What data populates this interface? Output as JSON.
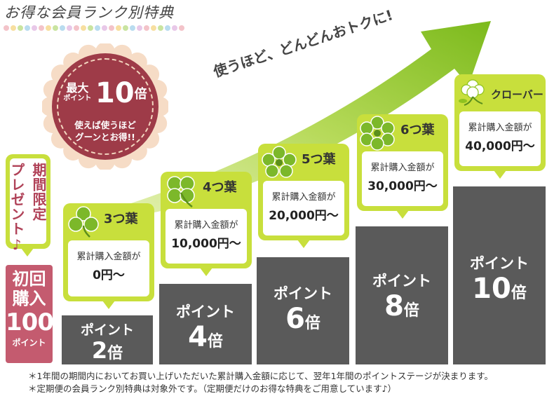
{
  "title": "お得な会員ランク別特典",
  "slogan": "使うほど、どんどんおトクに!",
  "badge": {
    "line1_a": "最大",
    "line1_b": "ポイント",
    "multiplier": "10",
    "unit": "倍",
    "line2": "使えば使うほど",
    "line3": "グーンとお得!!"
  },
  "promo": {
    "col1": "期間限定",
    "col2": "プレゼント♪"
  },
  "first_purchase": {
    "line1a": "初",
    "line1b": "回",
    "line2a": "購",
    "line2b": "入",
    "points": "100",
    "unit": "ポイント"
  },
  "ranks": [
    {
      "name": "3つ葉",
      "label": "累計購入金額が",
      "amount": "0円〜",
      "point_label": "ポイント",
      "multiplier": "2",
      "unit": "倍"
    },
    {
      "name": "4つ葉",
      "label": "累計購入金額が",
      "amount": "10,000円〜",
      "point_label": "ポイント",
      "multiplier": "4",
      "unit": "倍"
    },
    {
      "name": "5つ葉",
      "label": "累計購入金額が",
      "amount": "20,000円〜",
      "point_label": "ポイント",
      "multiplier": "6",
      "unit": "倍"
    },
    {
      "name": "6つ葉",
      "label": "累計購入金額が",
      "amount": "30,000円〜",
      "point_label": "ポイント",
      "multiplier": "8",
      "unit": "倍"
    },
    {
      "name": "クローバー",
      "label": "累計購入金額が",
      "amount": "40,000円〜",
      "point_label": "ポイント",
      "multiplier": "10",
      "unit": "倍"
    }
  ],
  "notes": [
    "＊1年間の期間内においてお買い上げいただいた累計購入金額に応じて、翌年1年間のポイントステージが決まります。",
    "＊定期便の会員ランク別特典は対象外です。（定期便だけのお得な特典をご用意しています♪）"
  ],
  "colors": {
    "bar": "#5a5a5a",
    "card": "#c8df3c",
    "arrow": "#8fc31f",
    "badge": "#9e3b48",
    "promo_text": "#b04258",
    "first": "#c45b6f"
  }
}
